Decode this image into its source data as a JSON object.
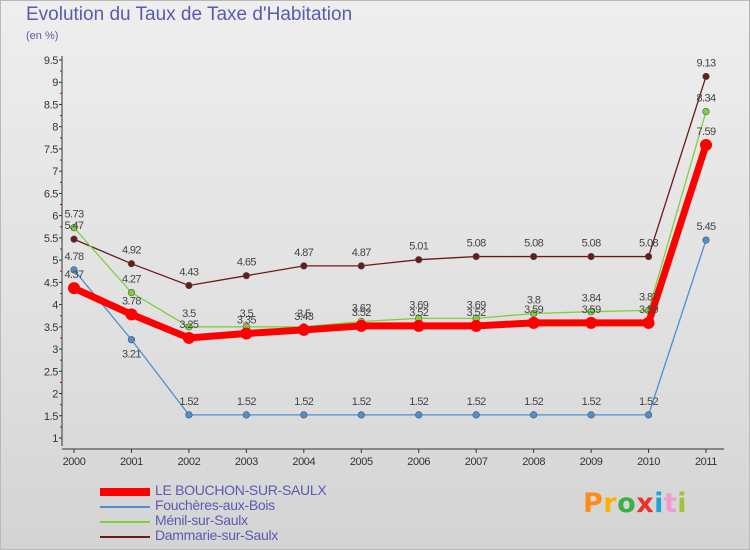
{
  "title": "Evolution du Taux de Taxe d'Habitation",
  "subtitle": "(en %)",
  "logo": [
    "P",
    "r",
    "o",
    "x",
    "i",
    "t",
    "i"
  ],
  "logo_colors": [
    "#ff8a1c",
    "#ffb100",
    "#3cb043",
    "#e8322c",
    "#1fa3dc",
    "#f29ad0",
    "#9bc53d"
  ],
  "chart_data": {
    "type": "line",
    "title": "Evolution du Taux de Taxe d'Habitation",
    "ylabel": "(en %)",
    "xlabel": "",
    "x": [
      "2000",
      "2001",
      "2002",
      "2003",
      "2004",
      "2005",
      "2006",
      "2007",
      "2008",
      "2009",
      "2010",
      "2011"
    ],
    "ylim": [
      1,
      9.5
    ],
    "yticks": [
      "1",
      "1.5",
      "2",
      "2.5",
      "3",
      "3.5",
      "4",
      "4.5",
      "5",
      "5.5",
      "6",
      "6.5",
      "7",
      "7.5",
      "8",
      "8.5",
      "9",
      "9.5"
    ],
    "grid": false,
    "legend_position": "bottom-left",
    "series": [
      {
        "name": "LE BOUCHON-SUR-SAULX",
        "color": "#ff0000",
        "values": [
          4.37,
          3.78,
          3.25,
          3.35,
          3.43,
          3.52,
          3.52,
          3.52,
          3.59,
          3.59,
          3.59,
          7.59
        ],
        "labels": [
          "4.37",
          "3.78",
          "3.25",
          "3.35",
          "3.43",
          "3.52",
          "3.52",
          "3.52",
          "3.59",
          "3.59",
          "3.59",
          "7.59"
        ]
      },
      {
        "name": "Fouchères-aux-Bois",
        "color": "#4d8fcf",
        "values": [
          4.78,
          3.21,
          1.52,
          1.52,
          1.52,
          1.52,
          1.52,
          1.52,
          1.52,
          1.52,
          1.52,
          5.45
        ],
        "labels": [
          "4.78",
          "3.21",
          "1.52",
          "1.52",
          "1.52",
          "1.52",
          "1.52",
          "1.52",
          "1.52",
          "1.52",
          "1.52",
          "5.45"
        ]
      },
      {
        "name": "Ménil-sur-Saulx",
        "color": "#7fd13b",
        "values": [
          5.73,
          4.27,
          3.5,
          3.5,
          3.5,
          3.62,
          3.69,
          3.69,
          3.8,
          3.84,
          3.87,
          8.34
        ],
        "labels": [
          "5.73",
          "4.27",
          "3.5",
          "3.5",
          "3.5",
          "3.62",
          "3.69",
          "3.69",
          "3.8",
          "3.84",
          "3.87",
          "8.34"
        ]
      },
      {
        "name": "Dammarie-sur-Saulx",
        "color": "#6b1a1a",
        "values": [
          5.47,
          4.92,
          4.43,
          4.65,
          4.87,
          4.87,
          5.01,
          5.08,
          5.08,
          5.08,
          5.08,
          9.13
        ],
        "labels": [
          "5.47",
          "4.92",
          "4.43",
          "4.65",
          "4.87",
          "4.87",
          "5.01",
          "5.08",
          "5.08",
          "5.08",
          "5.08",
          "9.13"
        ]
      }
    ]
  }
}
